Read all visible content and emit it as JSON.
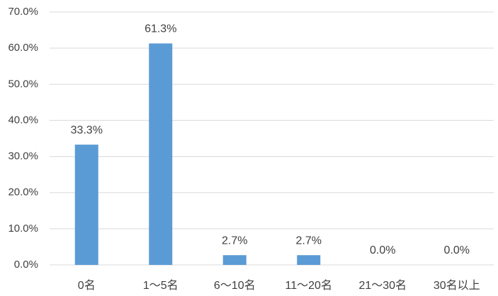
{
  "chart_data": {
    "type": "bar",
    "categories": [
      "0名",
      "1～5名",
      "6～10名",
      "11～20名",
      "21～30名",
      "30名以上"
    ],
    "values": [
      33.3,
      61.3,
      2.7,
      2.7,
      0.0,
      0.0
    ],
    "value_labels": [
      "33.3%",
      "61.3%",
      "2.7%",
      "2.7%",
      "0.0%",
      "0.0%"
    ],
    "color": "#5b9bd5",
    "ylim": [
      0,
      70
    ],
    "yticks": [
      {
        "value": 0,
        "label": "0.0%"
      },
      {
        "value": 10,
        "label": "10.0%"
      },
      {
        "value": 20,
        "label": "20.0%"
      },
      {
        "value": 30,
        "label": "30.0%"
      },
      {
        "value": 40,
        "label": "40.0%"
      },
      {
        "value": 50,
        "label": "50.0%"
      },
      {
        "value": 60,
        "label": "60.0%"
      },
      {
        "value": 70,
        "label": "70.0%"
      }
    ],
    "grid": true
  }
}
